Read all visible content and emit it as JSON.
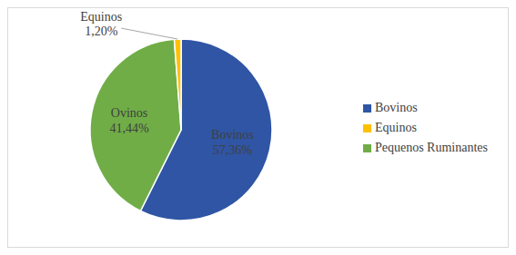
{
  "chart_data": {
    "type": "pie",
    "categories": [
      "Bovinos",
      "Pequenos Ruminantes",
      "Equinos"
    ],
    "labels": [
      "Bovinos",
      "Ovinos",
      "Equinos"
    ],
    "values": [
      57.36,
      41.44,
      1.2
    ],
    "value_labels": [
      "57,36%",
      "41,44%",
      "1,20%"
    ],
    "colors": [
      "#2f55a4",
      "#70ad47",
      "#ffc000"
    ],
    "data_labels": true,
    "legend": "right"
  }
}
